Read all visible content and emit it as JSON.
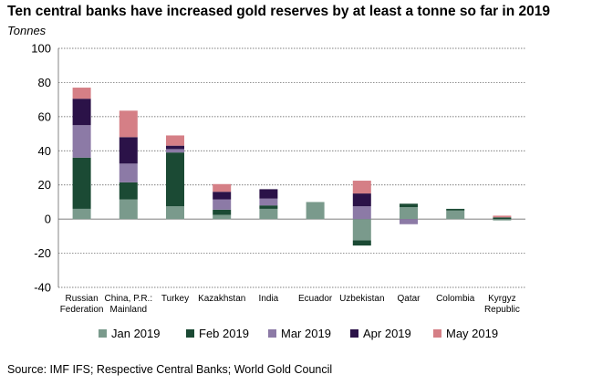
{
  "chart_data": {
    "type": "bar",
    "stacked": true,
    "title": "Ten central banks have increased gold reserves by at least a tonne so far in 2019",
    "ylabel": "Tonnes",
    "ylim": [
      -40,
      100
    ],
    "yticks": [
      -40,
      -20,
      0,
      20,
      40,
      60,
      80,
      100
    ],
    "grid": true,
    "legend_position": "bottom",
    "categories": [
      [
        "Russian",
        "Federation"
      ],
      [
        "China, P.R.:",
        "Mainland"
      ],
      [
        "Turkey"
      ],
      [
        "Kazakhstan"
      ],
      [
        "India"
      ],
      [
        "Ecuador"
      ],
      [
        "Uzbekistan"
      ],
      [
        "Qatar"
      ],
      [
        "Colombia"
      ],
      [
        "Kyrgyz",
        "Republic"
      ]
    ],
    "series": [
      {
        "name": "Jan 2019",
        "color": "#7a9a8c",
        "values": [
          6,
          11.5,
          7.5,
          2.5,
          6,
          10,
          -12.5,
          7,
          5,
          -0.8
        ]
      },
      {
        "name": "Feb 2019",
        "color": "#1b4a34",
        "values": [
          30,
          10,
          31.5,
          3,
          2,
          0,
          -3,
          2,
          1,
          1
        ]
      },
      {
        "name": "Mar 2019",
        "color": "#8c7aa6",
        "values": [
          19,
          11,
          2,
          6,
          4,
          0,
          7.5,
          -3,
          0,
          0
        ]
      },
      {
        "name": "Apr 2019",
        "color": "#2b1248",
        "values": [
          15.5,
          15.5,
          2,
          4.5,
          5.5,
          0,
          7.5,
          0,
          0,
          0
        ]
      },
      {
        "name": "May 2019",
        "color": "#d57f86",
        "values": [
          6.5,
          15.5,
          6,
          4.5,
          0,
          0,
          7.5,
          0,
          0,
          1
        ]
      }
    ]
  },
  "source": "Source: IMF IFS; Respective Central Banks; World Gold Council"
}
